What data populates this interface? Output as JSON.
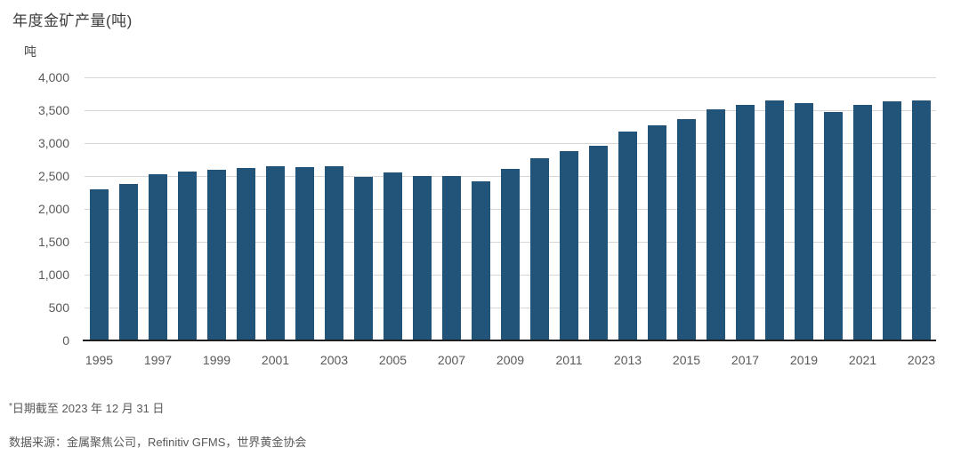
{
  "title": "年度金矿产量(吨)",
  "y_axis_unit": "吨",
  "footnote": {
    "marker": "*",
    "text": "日期截至 2023 年 12 月 31 日"
  },
  "source_note": "数据来源：金属聚焦公司，Refinitiv GFMS，世界黄金协会",
  "colors": {
    "bar": "#215478",
    "gridline": "#d6d6d6",
    "axis_line": "#1f1f1f",
    "tick_text": "#595959",
    "title_text": "#3d3d3d"
  },
  "chart_data": {
    "type": "bar",
    "title": "年度金矿产量(吨)",
    "xlabel": "",
    "ylabel": "吨",
    "ylim": [
      0,
      4000
    ],
    "ytick_step": 500,
    "ytick_labels": [
      "0",
      "500",
      "1,000",
      "1,500",
      "2,000",
      "2,500",
      "3,000",
      "3,500",
      "4,000"
    ],
    "grid": true,
    "legend_position": "none",
    "categories": [
      1995,
      1996,
      1997,
      1998,
      1999,
      2000,
      2001,
      2002,
      2003,
      2004,
      2005,
      2006,
      2007,
      2008,
      2009,
      2010,
      2011,
      2012,
      2013,
      2014,
      2015,
      2016,
      2017,
      2018,
      2019,
      2020,
      2021,
      2022,
      2023
    ],
    "values": [
      2300,
      2375,
      2530,
      2570,
      2600,
      2625,
      2650,
      2630,
      2645,
      2490,
      2555,
      2500,
      2505,
      2425,
      2610,
      2765,
      2885,
      2955,
      3170,
      3270,
      3360,
      3520,
      3575,
      3655,
      3605,
      3475,
      3580,
      3635,
      3645
    ],
    "xtick_labels": [
      "1995",
      "1997",
      "1999",
      "2001",
      "2003",
      "2005",
      "2007",
      "2009",
      "2011",
      "2013",
      "2015",
      "2017",
      "2019",
      "2021",
      "2023"
    ]
  }
}
